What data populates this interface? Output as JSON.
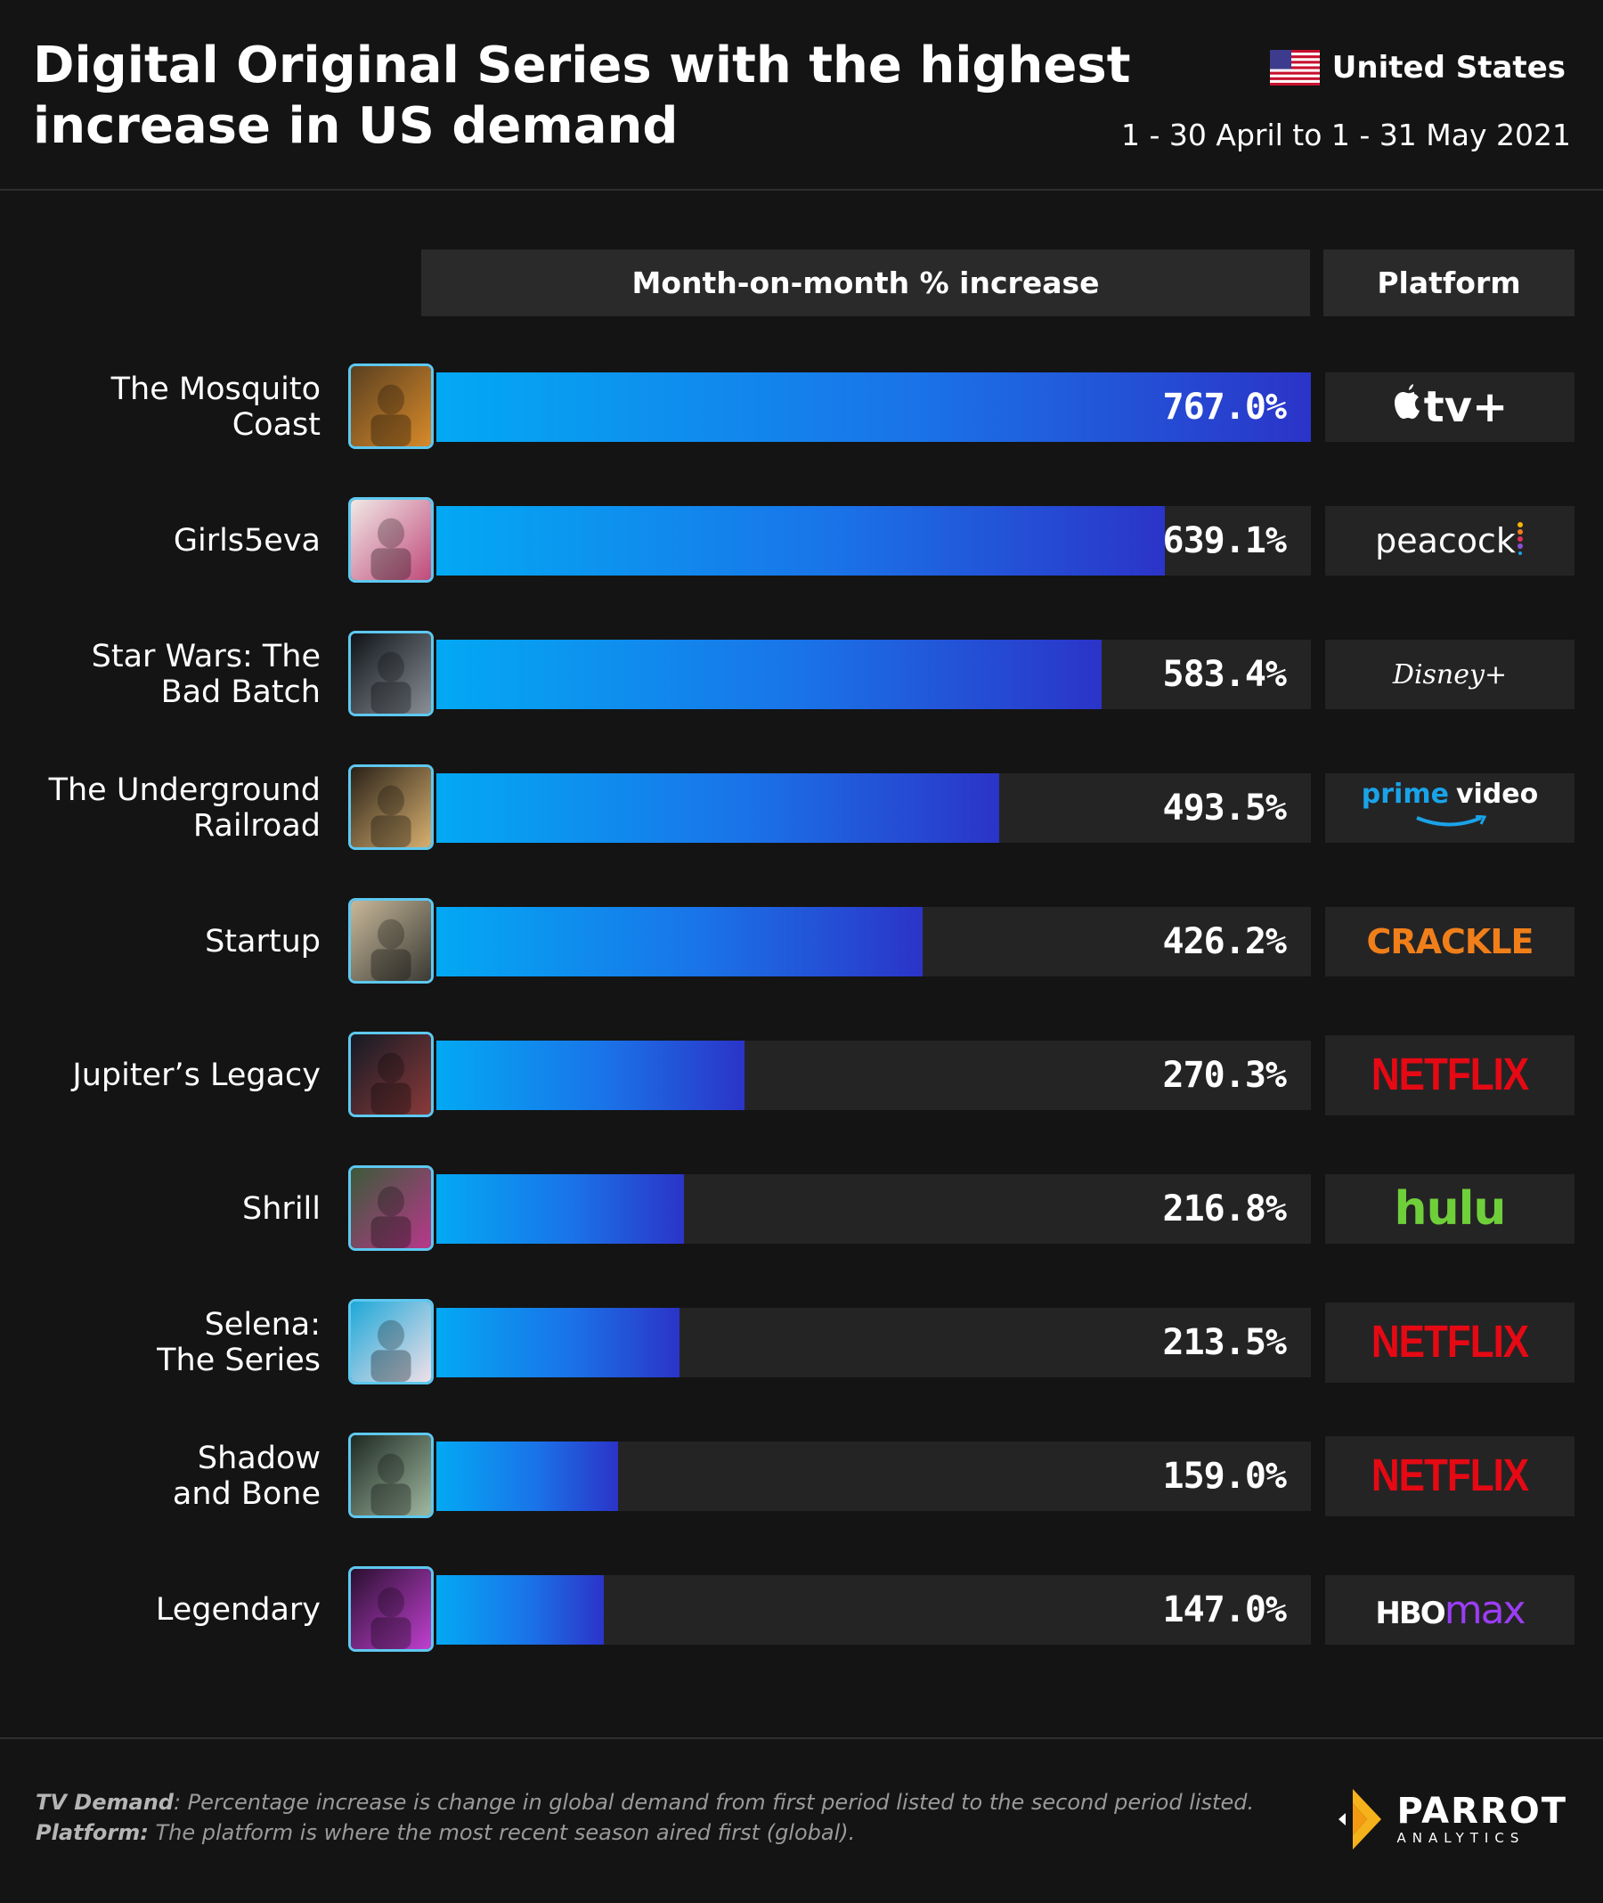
{
  "header": {
    "title": "Digital Original Series with the highest increase in US demand",
    "region": "United States",
    "period": "1 - 30 April to 1 - 31 May 2021"
  },
  "columns": {
    "metric": "Month-on-month % increase",
    "platform": "Platform"
  },
  "chart_data": {
    "type": "bar",
    "orientation": "horizontal",
    "categories": [
      "The Mosquito Coast",
      "Girls5eva",
      "Star Wars: The Bad Batch",
      "The Underground Railroad",
      "Startup",
      "Jupiter’s Legacy",
      "Shrill",
      "Selena: The Series",
      "Shadow and Bone",
      "Legendary"
    ],
    "values": [
      767.0,
      639.1,
      583.4,
      493.5,
      426.2,
      270.3,
      216.8,
      213.5,
      159.0,
      147.0
    ],
    "value_labels": [
      "767.0%",
      "639.1%",
      "583.4%",
      "493.5%",
      "426.2%",
      "270.3%",
      "216.8%",
      "213.5%",
      "159.0%",
      "147.0%"
    ],
    "platforms": [
      "tv+",
      "peacock",
      "Disney+",
      "prime video",
      "CRACKLE",
      "NETFLIX",
      "hulu",
      "NETFLIX",
      "NETFLIX",
      "HBOmax"
    ],
    "xlim": [
      0,
      767
    ],
    "title": "Digital Original Series with the highest increase in US demand",
    "xlabel": "Month-on-month % increase",
    "ylabel": ""
  },
  "footer": {
    "note1_key": "TV Demand",
    "note1_text": ": Percentage increase is change in global demand from first period listed to the second period listed.",
    "note2_key": "Platform:",
    "note2_text": " The platform is where the most recent season aired first (global).",
    "brand_name": "PARROT",
    "brand_sub": "ANALYTICS"
  },
  "colors": {
    "background": "#141414",
    "bar_start": "#03a9f4",
    "bar_end": "#2b34c8",
    "netflix": "#e50914",
    "hulu": "#6fcf3a",
    "crackle": "#f07f1a",
    "prime": "#1aa3e8",
    "hbo_max": "#9b3df5"
  }
}
